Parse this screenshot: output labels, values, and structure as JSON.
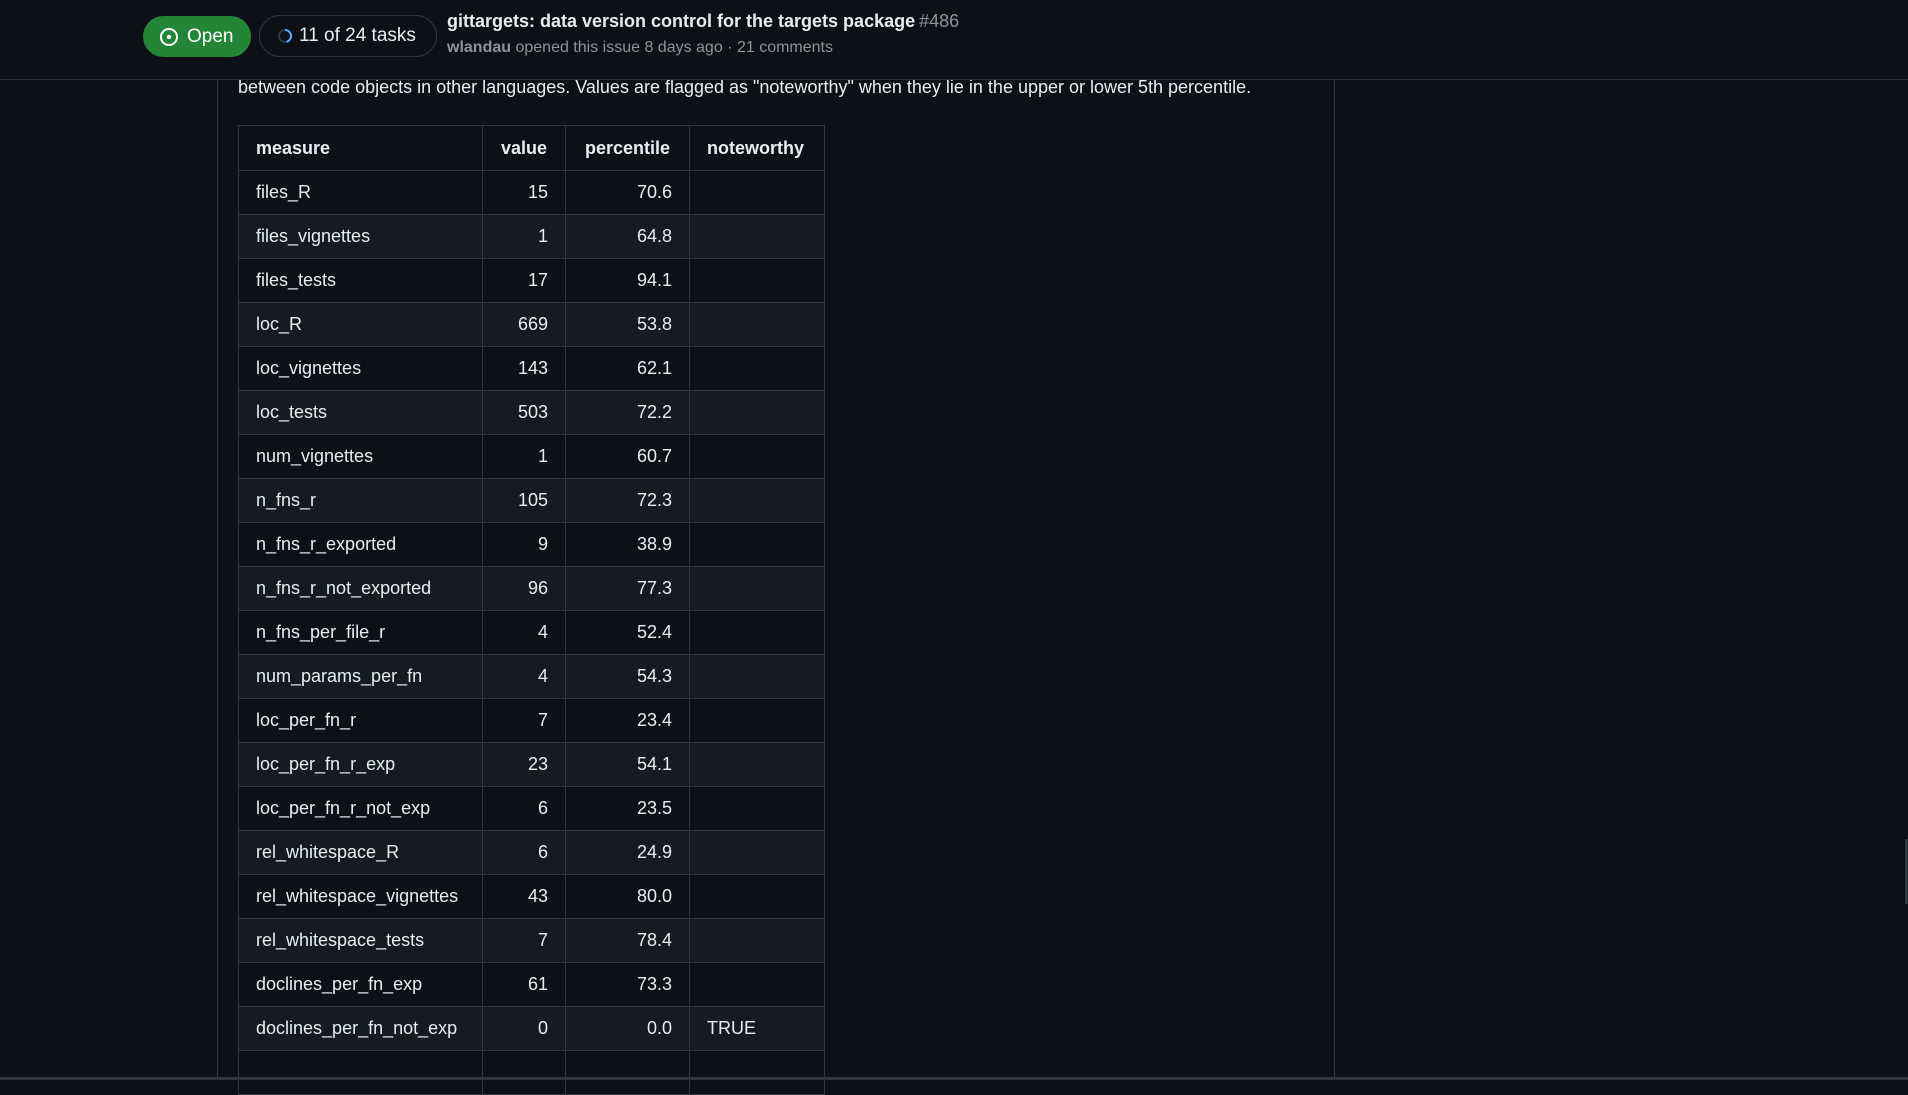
{
  "header": {
    "state_label": "Open",
    "tasks_label": "11 of 24 tasks",
    "title": "gittargets: data version control for the targets package",
    "number": "#486",
    "author": "wlandau",
    "meta": "opened this issue 8 days ago · 21 comments"
  },
  "body": {
    "intro": "between code objects in other languages. Values are flagged as \"noteworthy\" when they lie in the upper or lower 5th percentile."
  },
  "table": {
    "headers": [
      "measure",
      "value",
      "percentile",
      "noteworthy"
    ],
    "rows": [
      [
        "files_R",
        "15",
        "70.6",
        ""
      ],
      [
        "files_vignettes",
        "1",
        "64.8",
        ""
      ],
      [
        "files_tests",
        "17",
        "94.1",
        ""
      ],
      [
        "loc_R",
        "669",
        "53.8",
        ""
      ],
      [
        "loc_vignettes",
        "143",
        "62.1",
        ""
      ],
      [
        "loc_tests",
        "503",
        "72.2",
        ""
      ],
      [
        "num_vignettes",
        "1",
        "60.7",
        ""
      ],
      [
        "n_fns_r",
        "105",
        "72.3",
        ""
      ],
      [
        "n_fns_r_exported",
        "9",
        "38.9",
        ""
      ],
      [
        "n_fns_r_not_exported",
        "96",
        "77.3",
        ""
      ],
      [
        "n_fns_per_file_r",
        "4",
        "52.4",
        ""
      ],
      [
        "num_params_per_fn",
        "4",
        "54.3",
        ""
      ],
      [
        "loc_per_fn_r",
        "7",
        "23.4",
        ""
      ],
      [
        "loc_per_fn_r_exp",
        "23",
        "54.1",
        ""
      ],
      [
        "loc_per_fn_r_not_exp",
        "6",
        "23.5",
        ""
      ],
      [
        "rel_whitespace_R",
        "6",
        "24.9",
        ""
      ],
      [
        "rel_whitespace_vignettes",
        "43",
        "80.0",
        ""
      ],
      [
        "rel_whitespace_tests",
        "7",
        "78.4",
        ""
      ],
      [
        "doclines_per_fn_exp",
        "61",
        "73.3",
        ""
      ],
      [
        "doclines_per_fn_not_exp",
        "0",
        "0.0",
        "TRUE"
      ],
      [
        "",
        "",
        "",
        ""
      ]
    ]
  },
  "colors": {
    "open_badge": "#238636",
    "background": "#0d1117",
    "row_alt": "#161b22",
    "border": "#30363d"
  },
  "icons": {
    "state": "issue-opened-icon",
    "tasks": "progress-circle-icon"
  }
}
